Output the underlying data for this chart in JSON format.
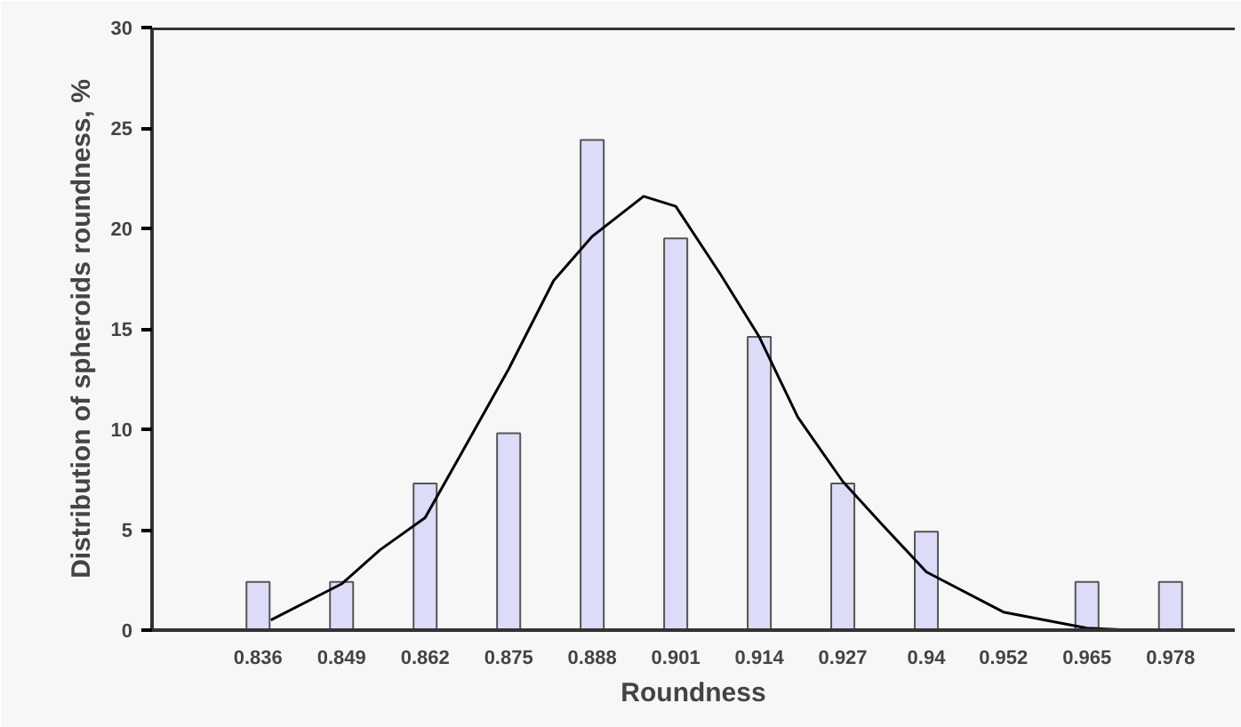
{
  "chart_data": {
    "type": "bar",
    "xlabel": "Roundness",
    "ylabel": "Distribution of spheroids roundness, %",
    "x": [
      0.836,
      0.849,
      0.862,
      0.875,
      0.888,
      0.901,
      0.914,
      0.927,
      0.94,
      0.952,
      0.965,
      0.978
    ],
    "xlim": [
      0.8195,
      0.988
    ],
    "xticks": [
      0.836,
      0.849,
      0.862,
      0.875,
      0.888,
      0.901,
      0.914,
      0.927,
      0.94,
      0.952,
      0.965,
      0.978
    ],
    "ylim": [
      0,
      30
    ],
    "yticks": [
      0,
      5,
      10,
      15,
      20,
      25,
      30
    ],
    "grid": false,
    "series": [
      {
        "color": "#dcdcf8",
        "values": [
          2.4,
          2.4,
          7.3,
          9.8,
          24.4,
          19.5,
          14.6,
          7.3,
          4.9,
          null,
          2.4,
          2.4
        ]
      },
      {
        "type": "line",
        "color": "#000000",
        "x": [
          0.838,
          0.849,
          0.855,
          0.862,
          0.868,
          0.875,
          0.882,
          0.888,
          0.896,
          0.901,
          0.908,
          0.914,
          0.92,
          0.927,
          0.933,
          0.94,
          0.952,
          0.965,
          0.972
        ],
        "values": [
          0.5,
          2.3,
          4.0,
          5.6,
          9.0,
          13.0,
          17.4,
          19.6,
          21.6,
          21.1,
          17.7,
          14.6,
          10.6,
          7.4,
          5.3,
          2.9,
          0.9,
          0.1,
          0
        ]
      }
    ]
  }
}
